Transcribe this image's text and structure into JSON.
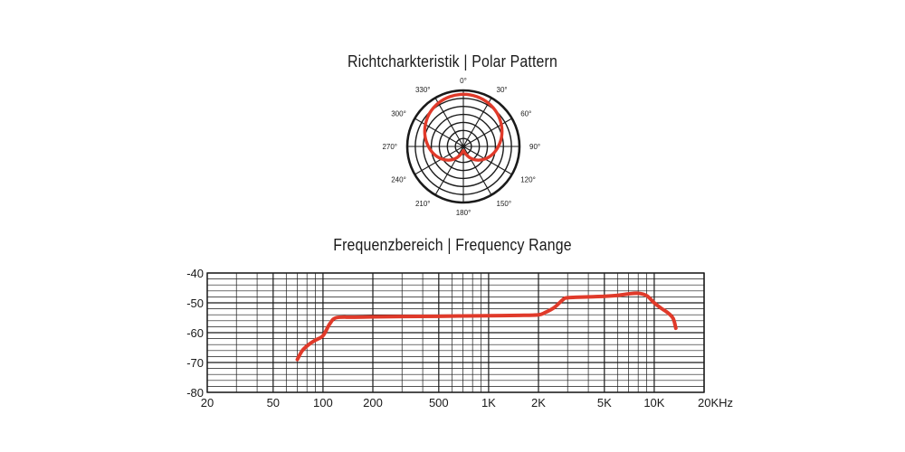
{
  "chart_data": [
    {
      "type": "polar",
      "title": "Richtcharkteristik | Polar Pattern",
      "angle_labels": [
        "0°",
        "30°",
        "60°",
        "90°",
        "120°",
        "150°",
        "180°",
        "210°",
        "240°",
        "270°",
        "300°",
        "330°"
      ],
      "angles_deg": [
        0,
        30,
        60,
        90,
        120,
        150,
        180,
        210,
        240,
        270,
        300,
        330
      ],
      "rings": 7,
      "series": [
        {
          "color": "#e03a2a",
          "pattern_angles_deg": [
            0,
            15,
            30,
            45,
            60,
            75,
            90,
            105,
            120,
            135,
            150,
            165,
            180,
            195,
            210,
            225,
            240,
            255,
            270,
            285,
            300,
            315,
            330,
            345
          ],
          "relative_level": [
            1.0,
            0.99,
            0.96,
            0.91,
            0.84,
            0.76,
            0.67,
            0.58,
            0.48,
            0.37,
            0.25,
            0.14,
            0.08,
            0.14,
            0.25,
            0.37,
            0.48,
            0.58,
            0.67,
            0.76,
            0.84,
            0.91,
            0.96,
            0.99
          ]
        }
      ]
    },
    {
      "type": "line",
      "title": "Frequenzbereich | Frequency Range",
      "xscale": "log",
      "xlim": [
        20,
        20000
      ],
      "ylim": [
        -80,
        -40
      ],
      "x_tick_values": [
        20,
        50,
        100,
        200,
        500,
        1000,
        2000,
        5000,
        10000,
        20000
      ],
      "x_tick_labels": [
        "20",
        "50",
        "100",
        "200",
        "500",
        "1K",
        "2K",
        "5K",
        "10K",
        "20KHz"
      ],
      "y_tick_values": [
        -40,
        -50,
        -60,
        -70,
        -80
      ],
      "y_tick_labels": [
        "-40",
        "-50",
        "-60",
        "-70",
        "-80"
      ],
      "grid": true,
      "series": [
        {
          "color": "#e03a2a",
          "x": [
            70,
            75,
            82,
            90,
            100,
            110,
            120,
            150,
            200,
            300,
            500,
            700,
            1000,
            1500,
            2000,
            2200,
            2500,
            2800,
            3000,
            4000,
            5000,
            6000,
            7000,
            8000,
            9000,
            10000,
            11000,
            12000,
            13000,
            13500
          ],
          "y": [
            -69,
            -66,
            -64,
            -62.5,
            -61,
            -57,
            -55,
            -54.8,
            -54.7,
            -54.6,
            -54.5,
            -54.4,
            -54.3,
            -54.2,
            -54,
            -53.2,
            -51.5,
            -49,
            -48.3,
            -48,
            -47.8,
            -47.5,
            -47,
            -46.8,
            -47.6,
            -50,
            -51.8,
            -53.2,
            -55.2,
            -58.5
          ]
        }
      ]
    }
  ]
}
